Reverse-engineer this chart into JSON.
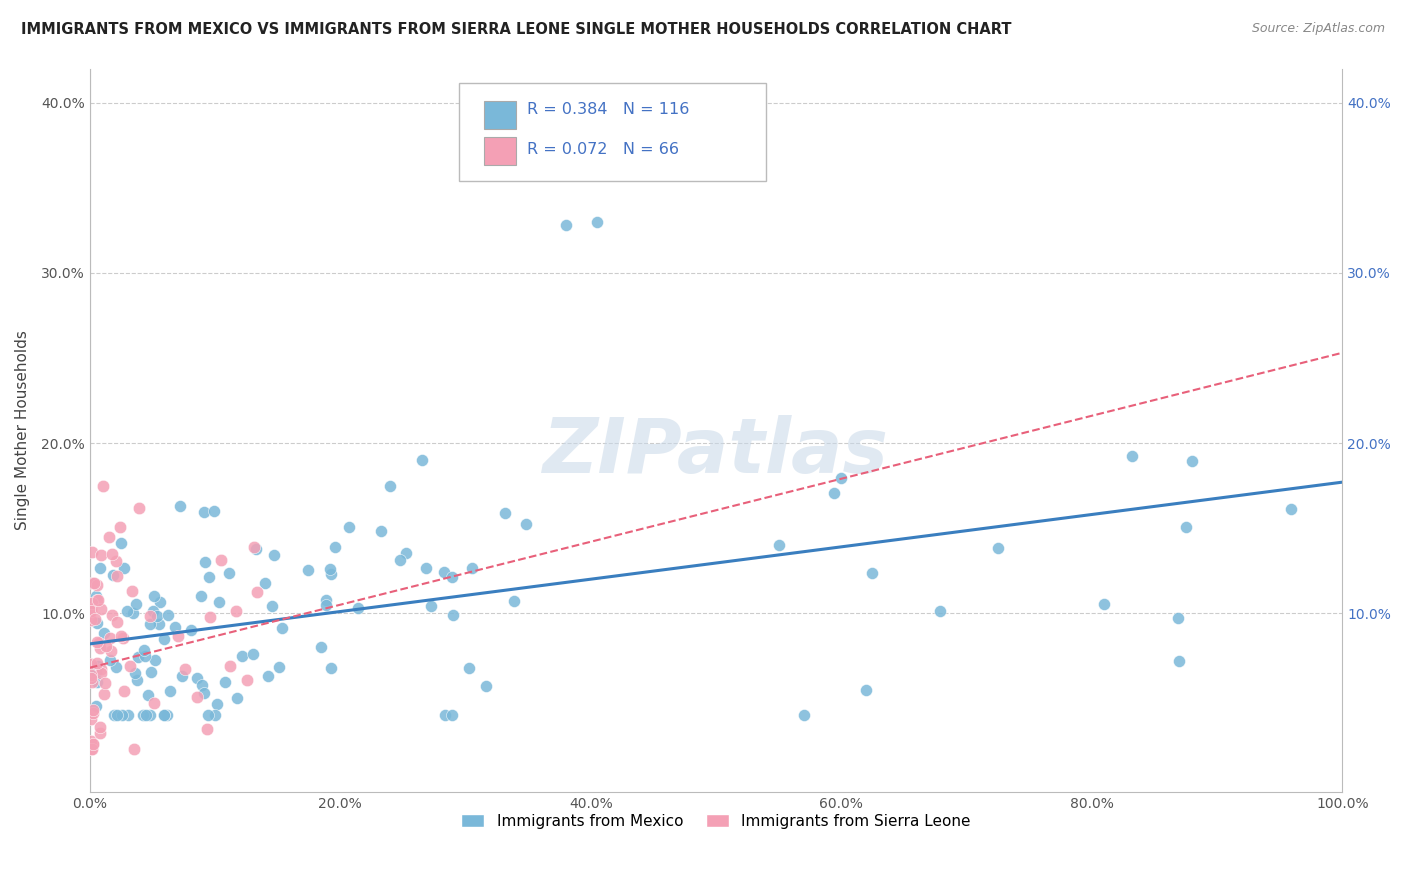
{
  "title": "IMMIGRANTS FROM MEXICO VS IMMIGRANTS FROM SIERRA LEONE SINGLE MOTHER HOUSEHOLDS CORRELATION CHART",
  "source": "Source: ZipAtlas.com",
  "ylabel": "Single Mother Households",
  "xlabel": "",
  "xlim": [
    0,
    1.0
  ],
  "ylim": [
    -0.005,
    0.42
  ],
  "yticks": [
    0.0,
    0.1,
    0.2,
    0.3,
    0.4
  ],
  "ytick_labels_left": [
    "",
    "10.0%",
    "20.0%",
    "30.0%",
    "40.0%"
  ],
  "ytick_labels_right": [
    "",
    "10.0%",
    "20.0%",
    "30.0%",
    "40.0%"
  ],
  "xticks": [
    0.0,
    0.2,
    0.4,
    0.6,
    0.8,
    1.0
  ],
  "xtick_labels": [
    "0.0%",
    "20.0%",
    "40.0%",
    "60.0%",
    "80.0%",
    "100.0%"
  ],
  "legend_label1": "Immigrants from Mexico",
  "legend_label2": "Immigrants from Sierra Leone",
  "R1": 0.384,
  "N1": 116,
  "R2": 0.072,
  "N2": 66,
  "color1": "#7ab8d9",
  "color2": "#f4a0b5",
  "line1_color": "#3a7ebf",
  "line2_color": "#e8607a",
  "line1_intercept": 0.082,
  "line1_slope": 0.095,
  "line2_intercept": 0.068,
  "line2_slope": 0.185,
  "background_color": "#ffffff",
  "grid_color": "#cccccc",
  "watermark": "ZIPatlas",
  "title_fontsize": 10.5,
  "axis_label_fontsize": 11,
  "tick_fontsize": 10
}
